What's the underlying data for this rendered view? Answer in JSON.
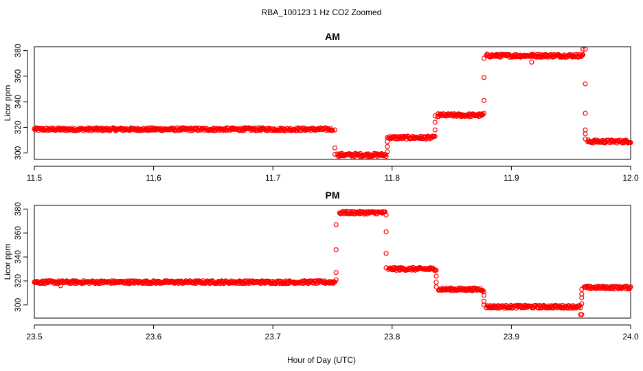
{
  "figure": {
    "title": "RBA_100123  1 Hz CO2 Zoomed",
    "xlabel": "Hour of Day (UTC)"
  },
  "colors": {
    "points": "#ff0000",
    "axis": "#000000"
  },
  "chart_data": [
    {
      "type": "scatter",
      "title": "AM",
      "xlabel": "",
      "ylabel": "Licor ppm",
      "xlim": [
        11.5,
        12.0
      ],
      "ylim": [
        295,
        383
      ],
      "xticks": [
        "11.5",
        "11.6",
        "11.7",
        "11.8",
        "11.9",
        "12.0"
      ],
      "yticks": [
        "300",
        "320",
        "340",
        "360",
        "380"
      ],
      "grid": false,
      "levels": [
        {
          "x": [
            11.5,
            11.75
          ],
          "y": 318.5
        },
        {
          "x": [
            11.754,
            11.795
          ],
          "y": 298.5
        },
        {
          "x": [
            11.797,
            11.835
          ],
          "y": 312
        },
        {
          "x": [
            11.838,
            11.876
          ],
          "y": 329.5
        },
        {
          "x": [
            11.879,
            11.96
          ],
          "y": 376
        },
        {
          "x": [
            11.964,
            12.0
          ],
          "y": 309
        }
      ],
      "transitions": [
        {
          "x": 11.752,
          "y": [
            318,
            304,
            299
          ]
        },
        {
          "x": 11.796,
          "y": [
            301,
            305,
            309,
            312
          ]
        },
        {
          "x": 11.836,
          "y": [
            313,
            318,
            324,
            329
          ]
        },
        {
          "x": 11.877,
          "y": [
            331,
            341,
            359,
            374
          ]
        },
        {
          "x": 11.962,
          "y": [
            381,
            354,
            331,
            318,
            315,
            311
          ]
        }
      ],
      "outliers": [
        {
          "x": 11.917,
          "y": 371
        },
        {
          "x": 11.96,
          "y": 381
        }
      ]
    },
    {
      "type": "scatter",
      "title": "PM",
      "xlabel": "",
      "ylabel": "Licor ppm",
      "xlim": [
        23.5,
        24.0
      ],
      "ylim": [
        289,
        383
      ],
      "xticks": [
        "23.5",
        "23.6",
        "23.7",
        "23.8",
        "23.9",
        "24.0"
      ],
      "yticks": [
        "300",
        "320",
        "340",
        "360",
        "380"
      ],
      "grid": false,
      "levels": [
        {
          "x": [
            23.5,
            23.752
          ],
          "y": 319
        },
        {
          "x": [
            23.756,
            23.794
          ],
          "y": 377
        },
        {
          "x": [
            23.797,
            23.836
          ],
          "y": 330
        },
        {
          "x": [
            23.839,
            23.876
          ],
          "y": 313
        },
        {
          "x": [
            23.879,
            23.958
          ],
          "y": 298.5
        },
        {
          "x": [
            23.961,
            24.0
          ],
          "y": 314.5
        }
      ],
      "transitions": [
        {
          "x": 23.753,
          "y": [
            321,
            327,
            346,
            367
          ]
        },
        {
          "x": 23.795,
          "y": [
            375,
            361,
            343,
            331
          ]
        },
        {
          "x": 23.837,
          "y": [
            329,
            324,
            319,
            315
          ]
        },
        {
          "x": 23.877,
          "y": [
            311,
            308,
            303,
            300
          ]
        },
        {
          "x": 23.959,
          "y": [
            292,
            301,
            306,
            309,
            313
          ]
        }
      ],
      "outliers": [
        {
          "x": 23.522,
          "y": 316
        },
        {
          "x": 23.958,
          "y": 292
        }
      ]
    }
  ]
}
